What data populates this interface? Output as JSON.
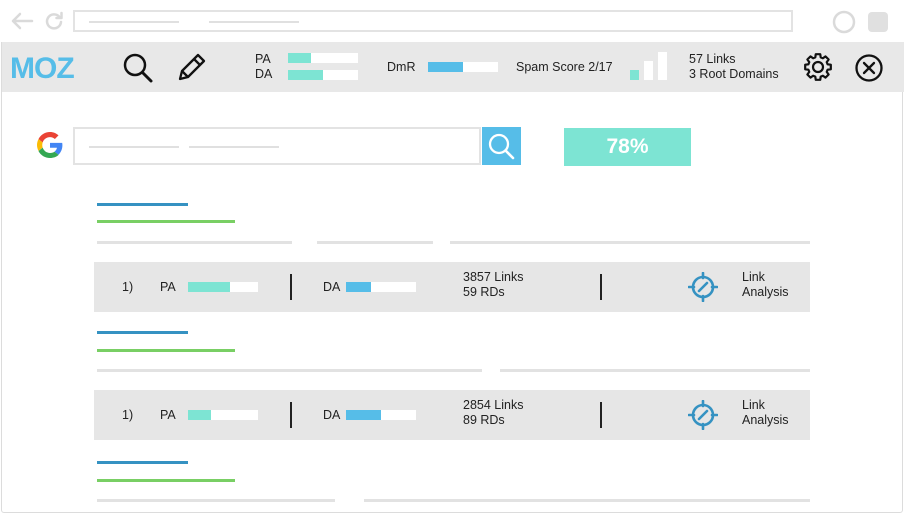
{
  "toolbar": {
    "logo_text": "MOZ",
    "pa_label": "PA",
    "da_label": "DA",
    "pa_level": 0.33,
    "da_level": 0.5,
    "dmr_label": "DmR",
    "dmr_level": 0.5,
    "spam_score_text": "Spam Score 2/17",
    "links_text": "57 Links",
    "root_domains_text": "3 Root Domains"
  },
  "search": {
    "score_badge": "78%"
  },
  "results": [
    {
      "rank": "1)",
      "pa_label": "PA",
      "pa_level": 0.6,
      "da_label": "DA",
      "da_level": 0.35,
      "links": "3857 Links",
      "rds": "59 RDs",
      "analysis_line1": "Link",
      "analysis_line2": "Analysis"
    },
    {
      "rank": "1)",
      "pa_label": "PA",
      "pa_level": 0.33,
      "da_label": "DA",
      "da_level": 0.5,
      "links": "2854 Links",
      "rds": "89 RDs",
      "analysis_line1": "Link",
      "analysis_line2": "Analysis"
    }
  ],
  "colors": {
    "moz_blue": "#56bde8",
    "teal": "#7de4d3",
    "link_blue": "#3592c2",
    "url_green": "#79cf64",
    "icon_blue": "#3592c2"
  },
  "icons": [
    "back-arrow-icon",
    "reload-icon",
    "circle-icon",
    "square-icon",
    "search-icon",
    "pencil-icon",
    "signal-bars-icon",
    "gear-icon",
    "close-icon",
    "google-icon",
    "target-icon"
  ]
}
